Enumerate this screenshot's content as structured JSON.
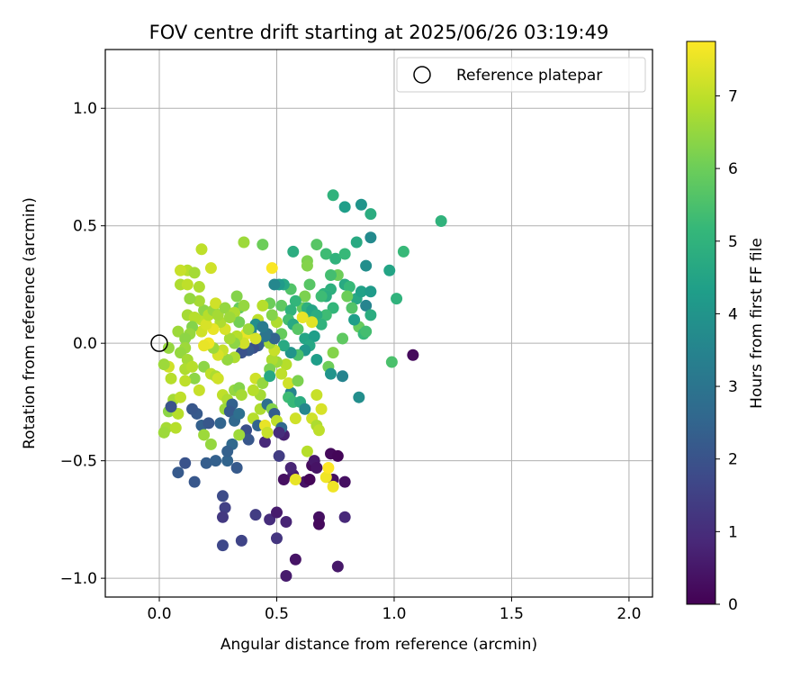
{
  "chart_data": {
    "type": "scatter",
    "title": "FOV centre drift starting at 2025/06/26 03:19:49",
    "xlabel": "Angular distance from reference (arcmin)",
    "ylabel": "Rotation from reference (arcmin)",
    "xlim": [
      -0.23,
      2.1
    ],
    "ylim": [
      -1.08,
      1.25
    ],
    "xticks": [
      0.0,
      0.5,
      1.0,
      1.5,
      2.0
    ],
    "xtick_labels": [
      "0.0",
      "0.5",
      "1.0",
      "1.5",
      "2.0"
    ],
    "yticks": [
      -1.0,
      -0.5,
      0.0,
      0.5,
      1.0
    ],
    "ytick_labels": [
      "−1.0",
      "−0.5",
      "0.0",
      "0.5",
      "1.0"
    ],
    "grid": true,
    "legend": {
      "position": "top-right",
      "entries": [
        "Reference platepar"
      ]
    },
    "reference_point": {
      "x": 0.0,
      "y": 0.0
    },
    "colorbar": {
      "label": "Hours from first FF file",
      "range": [
        0,
        7.75
      ],
      "ticks": [
        0,
        1,
        2,
        3,
        4,
        5,
        6,
        7
      ],
      "tick_labels": [
        "0",
        "1",
        "2",
        "3",
        "4",
        "5",
        "6",
        "7"
      ],
      "colormap": "viridis",
      "colors": [
        "#440154",
        "#482878",
        "#3e4989",
        "#31688e",
        "#26828e",
        "#1f9e89",
        "#35b779",
        "#6ece58",
        "#b5de2b",
        "#fde725"
      ]
    },
    "points": [
      [
        0.08,
        -0.55,
        2.2
      ],
      [
        0.11,
        -0.51,
        2.0
      ],
      [
        0.15,
        -0.59,
        2.1
      ],
      [
        0.2,
        -0.51,
        2.3
      ],
      [
        0.24,
        -0.5,
        2.4
      ],
      [
        0.29,
        -0.5,
        2.5
      ],
      [
        0.31,
        -0.43,
        2.6
      ],
      [
        0.33,
        -0.53,
        2.2
      ],
      [
        0.27,
        -0.65,
        1.8
      ],
      [
        0.28,
        -0.7,
        1.5
      ],
      [
        0.27,
        -0.74,
        1.3
      ],
      [
        0.27,
        -0.86,
        1.7
      ],
      [
        0.35,
        -0.84,
        1.6
      ],
      [
        0.41,
        -0.73,
        1.4
      ],
      [
        0.47,
        -0.75,
        1.0
      ],
      [
        0.5,
        -0.72,
        0.6
      ],
      [
        0.5,
        -0.83,
        1.2
      ],
      [
        0.54,
        -0.76,
        0.8
      ],
      [
        0.54,
        -0.99,
        0.6
      ],
      [
        0.58,
        -0.92,
        0.4
      ],
      [
        0.68,
        -0.74,
        0.3
      ],
      [
        0.68,
        -0.77,
        0.2
      ],
      [
        0.76,
        -0.95,
        0.5
      ],
      [
        0.79,
        -0.74,
        0.9
      ],
      [
        0.79,
        -0.59,
        0.3
      ],
      [
        0.62,
        -0.59,
        0.4
      ],
      [
        0.64,
        -0.58,
        0.1
      ],
      [
        0.65,
        -0.52,
        0.2
      ],
      [
        0.66,
        -0.5,
        0.5
      ],
      [
        0.57,
        -0.56,
        0.6
      ],
      [
        0.53,
        -0.58,
        0.3
      ],
      [
        0.53,
        -0.39,
        0.7
      ],
      [
        0.45,
        -0.42,
        0.9
      ],
      [
        0.51,
        -0.48,
        1.4
      ],
      [
        0.56,
        -0.53,
        0.8
      ],
      [
        0.73,
        -0.47,
        0.2
      ],
      [
        0.76,
        -0.48,
        0.1
      ],
      [
        1.08,
        -0.05,
        0.2
      ],
      [
        0.67,
        -0.53,
        0.4
      ],
      [
        0.74,
        -0.58,
        0.3
      ],
      [
        0.71,
        -0.57,
        7.6
      ],
      [
        0.72,
        -0.53,
        7.8
      ],
      [
        0.74,
        -0.61,
        7.6
      ],
      [
        0.58,
        -0.58,
        7.5
      ],
      [
        0.63,
        -0.46,
        6.9
      ],
      [
        0.65,
        -0.32,
        7.2
      ],
      [
        0.67,
        -0.35,
        6.8
      ],
      [
        0.68,
        -0.37,
        7.0
      ],
      [
        0.69,
        -0.28,
        7.3
      ],
      [
        0.67,
        -0.22,
        7.1
      ],
      [
        0.74,
        -0.04,
        6.3
      ],
      [
        0.72,
        -0.1,
        6.0
      ],
      [
        0.78,
        -0.14,
        3.5
      ],
      [
        0.73,
        -0.13,
        4.0
      ],
      [
        0.85,
        -0.23,
        3.8
      ],
      [
        0.99,
        -0.08,
        5.5
      ],
      [
        0.78,
        0.02,
        5.8
      ],
      [
        0.85,
        0.07,
        5.9
      ],
      [
        0.87,
        0.04,
        5.2
      ],
      [
        0.88,
        0.05,
        5.4
      ],
      [
        0.88,
        0.16,
        3.5
      ],
      [
        0.84,
        0.19,
        4.6
      ],
      [
        0.86,
        0.22,
        4.4
      ],
      [
        0.9,
        0.22,
        4.2
      ],
      [
        0.79,
        0.25,
        4.7
      ],
      [
        0.81,
        0.24,
        5.2
      ],
      [
        0.76,
        0.29,
        6.0
      ],
      [
        0.73,
        0.29,
        5.4
      ],
      [
        0.73,
        0.23,
        4.9
      ],
      [
        0.7,
        0.21,
        5.0
      ],
      [
        0.71,
        0.2,
        4.8
      ],
      [
        0.69,
        0.2,
        5.3
      ],
      [
        0.74,
        0.15,
        5.1
      ],
      [
        0.71,
        0.12,
        5.3
      ],
      [
        0.64,
        0.25,
        5.7
      ],
      [
        0.62,
        0.2,
        6.2
      ],
      [
        0.61,
        0.15,
        5.9
      ],
      [
        0.58,
        0.18,
        5.1
      ],
      [
        0.56,
        0.23,
        5.6
      ],
      [
        0.53,
        0.25,
        4.6
      ],
      [
        0.51,
        0.25,
        4.2
      ],
      [
        0.49,
        0.25,
        3.6
      ],
      [
        0.52,
        0.16,
        5.8
      ],
      [
        0.56,
        0.14,
        5.0
      ],
      [
        0.55,
        0.1,
        5.4
      ],
      [
        0.57,
        0.08,
        4.7
      ],
      [
        0.59,
        0.06,
        5.7
      ],
      [
        0.63,
        0.15,
        4.9
      ],
      [
        0.64,
        0.12,
        5.2
      ],
      [
        0.65,
        0.14,
        4.5
      ],
      [
        0.67,
        0.12,
        4.8
      ],
      [
        0.69,
        0.08,
        5.0
      ],
      [
        0.65,
        0.09,
        7.4
      ],
      [
        0.61,
        0.11,
        7.5
      ],
      [
        0.62,
        0.02,
        4.5
      ],
      [
        0.66,
        0.03,
        4.3
      ],
      [
        0.64,
        -0.01,
        4.6
      ],
      [
        0.62,
        -0.03,
        4.1
      ],
      [
        0.67,
        -0.07,
        4.3
      ],
      [
        0.59,
        -0.05,
        5.5
      ],
      [
        0.56,
        -0.04,
        4.0
      ],
      [
        0.53,
        -0.01,
        4.7
      ],
      [
        0.52,
        0.04,
        5.9
      ],
      [
        0.5,
        0.09,
        6.8
      ],
      [
        0.48,
        0.12,
        6.3
      ],
      [
        0.47,
        0.17,
        6.0
      ],
      [
        0.48,
        0.32,
        7.7
      ],
      [
        0.44,
        0.16,
        6.9
      ],
      [
        0.42,
        0.1,
        7.0
      ],
      [
        0.41,
        0.08,
        3.8
      ],
      [
        0.39,
        0.05,
        3.5
      ],
      [
        0.37,
        0.04,
        7.5
      ],
      [
        0.46,
        0.04,
        3.0
      ],
      [
        0.44,
        0.01,
        2.6
      ],
      [
        0.42,
        -0.01,
        2.3
      ],
      [
        0.4,
        -0.02,
        1.9
      ],
      [
        0.38,
        -0.03,
        2.2
      ],
      [
        0.35,
        -0.04,
        2.0
      ],
      [
        0.32,
        -0.06,
        6.8
      ],
      [
        0.29,
        -0.07,
        6.5
      ],
      [
        0.27,
        -0.03,
        7.1
      ],
      [
        0.25,
        -0.05,
        7.3
      ],
      [
        0.23,
        -0.02,
        6.6
      ],
      [
        0.21,
        0.0,
        7.6
      ],
      [
        0.19,
        -0.01,
        7.5
      ],
      [
        0.18,
        0.05,
        7.2
      ],
      [
        0.18,
        0.1,
        7.0
      ],
      [
        0.19,
        0.14,
        6.4
      ],
      [
        0.17,
        0.18,
        6.7
      ],
      [
        0.17,
        0.24,
        6.8
      ],
      [
        0.18,
        0.4,
        7.0
      ],
      [
        0.22,
        0.32,
        7.2
      ],
      [
        0.12,
        0.31,
        6.9
      ],
      [
        0.15,
        0.3,
        6.7
      ],
      [
        0.09,
        0.31,
        7.1
      ],
      [
        0.09,
        0.25,
        6.8
      ],
      [
        0.12,
        0.25,
        7.0
      ],
      [
        0.13,
        0.19,
        6.5
      ],
      [
        0.12,
        0.12,
        6.7
      ],
      [
        0.15,
        0.11,
        6.9
      ],
      [
        0.14,
        0.07,
        6.3
      ],
      [
        0.13,
        0.04,
        6.5
      ],
      [
        0.08,
        0.05,
        6.6
      ],
      [
        0.11,
        0.02,
        6.4
      ],
      [
        0.11,
        -0.02,
        6.6
      ],
      [
        0.09,
        -0.04,
        6.5
      ],
      [
        0.12,
        -0.07,
        6.7
      ],
      [
        0.11,
        -0.11,
        6.8
      ],
      [
        0.14,
        -0.1,
        6.9
      ],
      [
        0.15,
        -0.15,
        6.4
      ],
      [
        0.11,
        -0.16,
        7.0
      ],
      [
        0.05,
        -0.15,
        6.9
      ],
      [
        0.04,
        -0.1,
        7.2
      ],
      [
        0.02,
        -0.09,
        6.6
      ],
      [
        0.04,
        -0.02,
        6.5
      ],
      [
        0.05,
        -0.27,
        7.1
      ],
      [
        0.06,
        -0.24,
        6.7
      ],
      [
        0.04,
        -0.29,
        6.4
      ],
      [
        0.08,
        -0.3,
        6.9
      ],
      [
        0.09,
        -0.23,
        7.0
      ],
      [
        0.03,
        -0.36,
        6.7
      ],
      [
        0.07,
        -0.36,
        6.9
      ],
      [
        0.02,
        -0.38,
        6.6
      ],
      [
        0.17,
        -0.2,
        7.1
      ],
      [
        0.19,
        -0.1,
        6.4
      ],
      [
        0.22,
        -0.13,
        7.0
      ],
      [
        0.24,
        -0.14,
        6.8
      ],
      [
        0.25,
        -0.15,
        7.2
      ],
      [
        0.27,
        -0.22,
        7.0
      ],
      [
        0.29,
        -0.24,
        6.8
      ],
      [
        0.28,
        -0.28,
        6.6
      ],
      [
        0.32,
        -0.2,
        6.5
      ],
      [
        0.34,
        -0.19,
        6.3
      ],
      [
        0.35,
        -0.22,
        6.7
      ],
      [
        0.31,
        -0.26,
        2.4
      ],
      [
        0.3,
        -0.29,
        2.2
      ],
      [
        0.32,
        -0.33,
        2.6
      ],
      [
        0.34,
        -0.3,
        2.8
      ],
      [
        0.26,
        -0.34,
        2.5
      ],
      [
        0.18,
        -0.35,
        2.4
      ],
      [
        0.16,
        -0.3,
        2.2
      ],
      [
        0.14,
        -0.28,
        2.1
      ],
      [
        0.05,
        -0.27,
        2.0
      ],
      [
        0.21,
        -0.34,
        2.1
      ],
      [
        0.22,
        -0.43,
        6.5
      ],
      [
        0.19,
        -0.39,
        6.6
      ],
      [
        0.29,
        -0.46,
        2.4
      ],
      [
        0.37,
        -0.37,
        1.9
      ],
      [
        0.38,
        -0.41,
        2.1
      ],
      [
        0.34,
        -0.39,
        6.6
      ],
      [
        0.4,
        -0.32,
        6.9
      ],
      [
        0.42,
        -0.35,
        2.5
      ],
      [
        0.43,
        -0.28,
        6.8
      ],
      [
        0.45,
        -0.35,
        7.5
      ],
      [
        0.46,
        -0.38,
        7.1
      ],
      [
        0.43,
        -0.22,
        6.7
      ],
      [
        0.4,
        -0.2,
        6.9
      ],
      [
        0.41,
        -0.15,
        7.2
      ],
      [
        0.44,
        -0.17,
        6.5
      ],
      [
        0.46,
        -0.26,
        2.8
      ],
      [
        0.48,
        -0.28,
        6.3
      ],
      [
        0.49,
        -0.3,
        2.3
      ],
      [
        0.5,
        -0.33,
        7.0
      ],
      [
        0.52,
        -0.36,
        2.6
      ],
      [
        0.51,
        -0.38,
        1.0
      ],
      [
        0.56,
        -0.21,
        3.5
      ],
      [
        0.55,
        -0.23,
        5.3
      ],
      [
        0.57,
        -0.25,
        5.2
      ],
      [
        0.6,
        -0.25,
        4.8
      ],
      [
        0.62,
        -0.28,
        3.6
      ],
      [
        0.58,
        -0.32,
        7.2
      ],
      [
        0.55,
        -0.17,
        7.2
      ],
      [
        0.59,
        -0.16,
        6.2
      ],
      [
        0.54,
        -0.09,
        6.9
      ],
      [
        0.5,
        -0.08,
        6.6
      ],
      [
        0.48,
        -0.07,
        6.8
      ],
      [
        0.47,
        -0.11,
        6.2
      ],
      [
        0.47,
        -0.14,
        4.6
      ],
      [
        0.52,
        -0.13,
        7.0
      ],
      [
        0.49,
        -0.03,
        7.1
      ],
      [
        0.47,
        0.0,
        6.7
      ],
      [
        0.49,
        0.02,
        2.5
      ],
      [
        0.45,
        0.03,
        3.0
      ],
      [
        0.44,
        0.07,
        3.2
      ],
      [
        0.41,
        0.02,
        7.3
      ],
      [
        0.38,
        0.06,
        6.6
      ],
      [
        0.36,
        0.0,
        7.2
      ],
      [
        0.33,
        0.03,
        6.9
      ],
      [
        0.32,
        0.0,
        6.4
      ],
      [
        0.3,
        0.02,
        6.7
      ],
      [
        0.28,
        0.06,
        7.3
      ],
      [
        0.26,
        0.09,
        6.8
      ],
      [
        0.23,
        0.06,
        7.5
      ],
      [
        0.2,
        0.08,
        7.3
      ],
      [
        0.21,
        0.12,
        6.9
      ],
      [
        0.23,
        0.14,
        6.5
      ],
      [
        0.25,
        0.12,
        6.7
      ],
      [
        0.24,
        0.17,
        7.2
      ],
      [
        0.28,
        0.15,
        6.5
      ],
      [
        0.33,
        0.2,
        6.3
      ],
      [
        0.34,
        0.15,
        5.9
      ],
      [
        0.32,
        0.13,
        6.8
      ],
      [
        0.36,
        0.16,
        6.5
      ],
      [
        0.34,
        0.09,
        6.1
      ],
      [
        0.3,
        0.11,
        6.6
      ],
      [
        0.36,
        0.43,
        6.6
      ],
      [
        0.44,
        0.42,
        6.0
      ],
      [
        0.57,
        0.39,
        4.8
      ],
      [
        0.63,
        0.35,
        6.2
      ],
      [
        0.63,
        0.33,
        6.3
      ],
      [
        0.67,
        0.42,
        5.7
      ],
      [
        0.71,
        0.38,
        5.3
      ],
      [
        0.75,
        0.36,
        5.0
      ],
      [
        0.79,
        0.38,
        5.2
      ],
      [
        0.84,
        0.43,
        4.7
      ],
      [
        0.9,
        0.45,
        3.7
      ],
      [
        0.88,
        0.33,
        3.8
      ],
      [
        0.98,
        0.31,
        4.5
      ],
      [
        1.04,
        0.39,
        5.2
      ],
      [
        1.2,
        0.52,
        5.0
      ],
      [
        0.74,
        0.63,
        5.0
      ],
      [
        0.79,
        0.58,
        4.3
      ],
      [
        0.86,
        0.59,
        4.0
      ],
      [
        0.9,
        0.55,
        4.8
      ],
      [
        1.01,
        0.19,
        5.0
      ],
      [
        0.9,
        0.12,
        4.8
      ],
      [
        0.83,
        0.1,
        4.3
      ],
      [
        0.82,
        0.15,
        5.6
      ],
      [
        0.8,
        0.2,
        6.0
      ]
    ]
  }
}
